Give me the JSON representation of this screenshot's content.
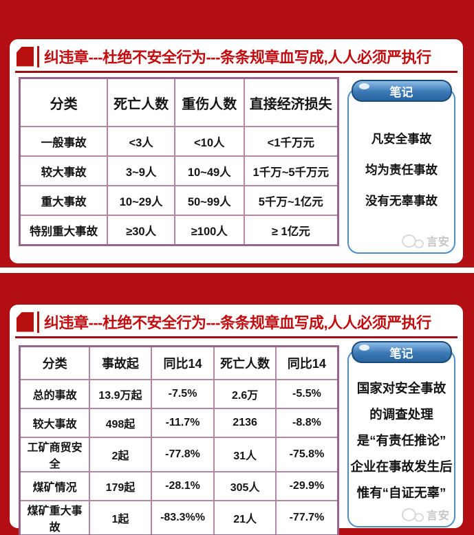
{
  "colors": {
    "slide_background_red": "#b30e13",
    "title_red": "#c20d10",
    "underline_red": "#9c0f13",
    "table_border_mauve": "#95638b",
    "table_inner_border": "#b286a5",
    "notes_border_blue": "#4a8ec9",
    "notes_pill_blue": "#2a659f",
    "watermark_gray": "#c6c6c6"
  },
  "slide1": {
    "title": "纠违章---杜绝不安全行为---条条规章血写成,人人必须严执行",
    "table": {
      "headers": [
        "分类",
        "死亡人数",
        "重伤人数",
        "直接经济损失"
      ],
      "rows": [
        [
          "一般事故",
          "<3人",
          "<10人",
          "<1千万元"
        ],
        [
          "较大事故",
          "3~9人",
          "10~49人",
          "1千万~5千万元"
        ],
        [
          "重大事故",
          "10~29人",
          "50~99人",
          "5千万~1亿元"
        ],
        [
          "特别重大事故",
          "≥30人",
          "≥100人",
          "≥ 1亿元"
        ]
      ]
    },
    "notes": {
      "label": "笔记",
      "lines": [
        "凡安全事故",
        "均为责任事故",
        "没有无辜事故"
      ]
    },
    "watermark": "言安"
  },
  "slide2": {
    "title": "纠违章---杜绝不安全行为---条条规章血写成,人人必须严执行",
    "table": {
      "headers": [
        "分类",
        "事故起",
        "同比14",
        "死亡人数",
        "同比14"
      ],
      "rows": [
        [
          "总的事故",
          "13.9万起",
          "-7.5%",
          "2.6万",
          "-5.5%"
        ],
        [
          "较大事故",
          "498起",
          "-11.7%",
          "2136",
          "-8.8%"
        ],
        [
          "工矿商贸安全",
          "2起",
          "-77.8%",
          "31人",
          "-75.8%"
        ],
        [
          "煤矿情况",
          "179起",
          "-28.1%",
          "305人",
          "-29.9%"
        ],
        [
          "煤矿重大事故",
          "1起",
          "-83.3%%",
          "21人",
          "-77.7%"
        ]
      ]
    },
    "notes": {
      "label": "笔记",
      "lines": [
        "国家对安全事故",
        "的调查处理",
        "是“有责任推论”",
        "企业在事故发生后",
        "惟有“自证无辜”"
      ]
    },
    "watermark": "言安"
  }
}
